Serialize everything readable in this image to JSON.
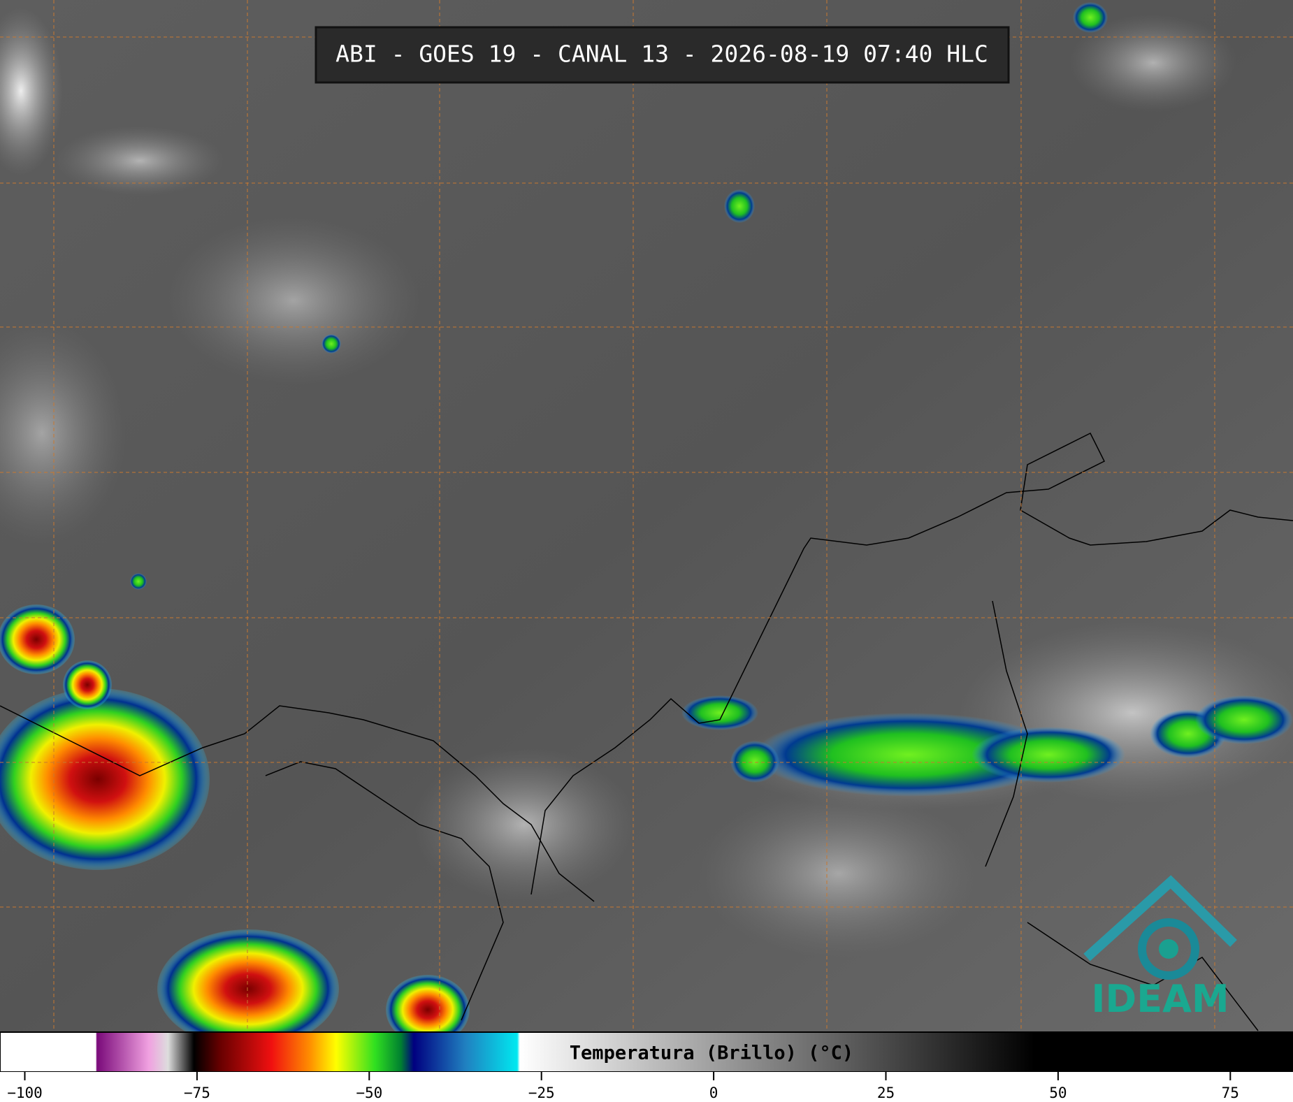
{
  "header": {
    "title": "ABI - GOES 19 - CANAL 13 - 2026-08-19 07:40 HLC"
  },
  "colorbar": {
    "label": "Temperatura (Brillo) (°C)",
    "range": [
      -103.6,
      84.1
    ],
    "ticks": [
      {
        "value": -100,
        "label": "−100"
      },
      {
        "value": -75,
        "label": "−75"
      },
      {
        "value": -50,
        "label": "−50"
      },
      {
        "value": -25,
        "label": "−25"
      },
      0,
      25,
      50,
      75
    ]
  },
  "logo": {
    "text": "IDEAM"
  }
}
